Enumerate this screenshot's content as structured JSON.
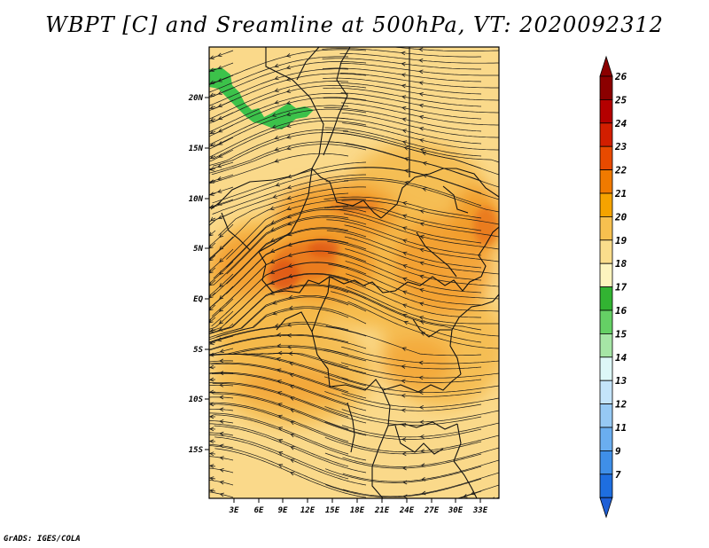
{
  "title": "WBPT [C] and Sreamline at 500hPa, VT: 2020092312",
  "credit": "GrADS: IGES/COLA",
  "map": {
    "y_ticks": [
      "20N",
      "15N",
      "10N",
      "5N",
      "EQ",
      "5S",
      "10S",
      "15S"
    ],
    "x_ticks": [
      "3E",
      "6E",
      "9E",
      "12E",
      "15E",
      "18E",
      "21E",
      "24E",
      "27E",
      "30E",
      "33E"
    ]
  },
  "colorbar": {
    "labels": [
      "26",
      "25",
      "24",
      "23",
      "22",
      "21",
      "20",
      "19",
      "18",
      "17",
      "16",
      "15",
      "14",
      "13",
      "12",
      "11",
      "9",
      "7"
    ],
    "colors": [
      "#8b0000",
      "#b40000",
      "#d21e00",
      "#e84a00",
      "#f07a00",
      "#f5a300",
      "#f7c04f",
      "#fadd8c",
      "#fdf4be",
      "#32b332",
      "#65d065",
      "#a6e6a6",
      "#ddf7f7",
      "#c4e4fa",
      "#96c9f4",
      "#6aaef0",
      "#3f8fe8",
      "#1e6ee0"
    ],
    "tip_top_color": "#8b0000",
    "tip_bottom_color": "#1e5fd6"
  },
  "colors": {
    "base": "#fad98a",
    "orange_light": "#f5b94a",
    "orange_mid": "#f29b2a",
    "orange_deep": "#ea7a1c",
    "red_orange": "#e05a18",
    "green": "#3cc24a",
    "streamline": "#1a1a1a"
  }
}
